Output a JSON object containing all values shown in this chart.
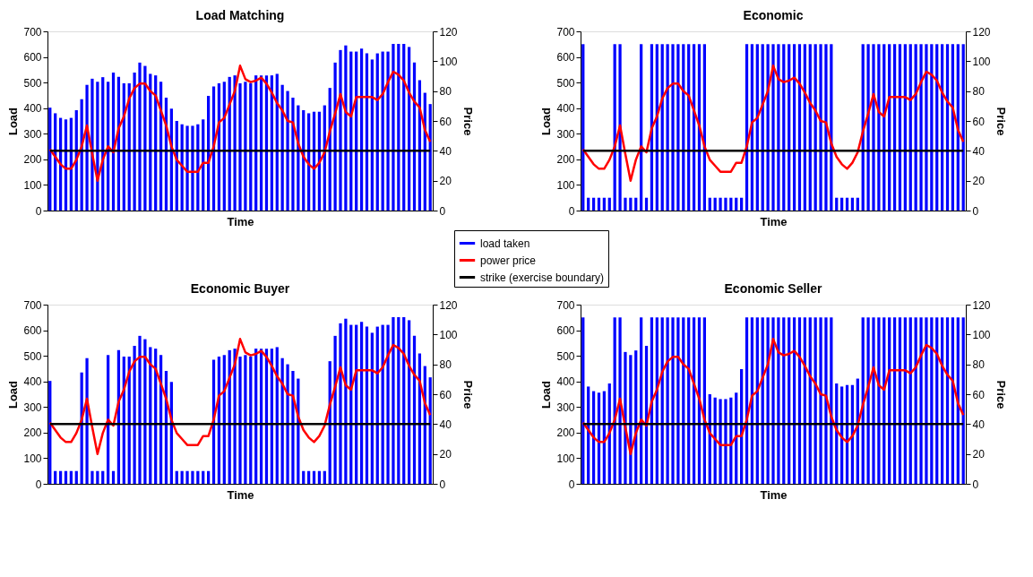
{
  "chart_data": [
    {
      "type": "bar",
      "title": "Load Matching",
      "xlabel": "Time",
      "ylabel": "Load",
      "y2label": "Price",
      "categories": [
        null,
        null,
        null,
        null,
        null,
        null,
        null,
        null,
        null,
        null,
        null,
        null,
        null,
        null,
        null,
        null,
        null,
        null,
        null,
        null,
        null,
        null,
        null,
        null,
        null,
        null,
        null,
        null,
        null,
        null,
        null,
        null,
        null,
        null,
        null,
        null,
        null,
        null,
        null,
        null,
        null,
        null,
        null,
        null,
        null,
        null,
        null,
        null,
        null,
        null,
        null,
        null,
        null,
        null,
        null,
        null,
        null,
        null,
        null,
        null,
        null,
        null,
        null,
        null,
        null,
        null,
        null,
        null,
        null,
        null,
        null,
        null,
        null
      ],
      "ylim": [
        0,
        700
      ],
      "yticks": [
        0,
        100,
        200,
        300,
        400,
        500,
        600,
        700
      ],
      "y2lim": [
        0,
        120
      ],
      "y2ticks": [
        0,
        20,
        40,
        60,
        80,
        100,
        120
      ],
      "grid": false,
      "legend": "bottom right",
      "series": [
        {
          "name": "load taken",
          "color": "#0000ff",
          "values": [
            402,
            380,
            362,
            356,
            362,
            392,
            435,
            491,
            515,
            503,
            521,
            503,
            539,
            522,
            497,
            497,
            539,
            578,
            565,
            534,
            528,
            503,
            441,
            398,
            350,
            337,
            331,
            331,
            337,
            356,
            448,
            485,
            497,
            503,
            522,
            528,
            497,
            503,
            497,
            528,
            528,
            528,
            528,
            534,
            491,
            467,
            441,
            411,
            392,
            380,
            386,
            386,
            411,
            479,
            578,
            627,
            645,
            621,
            621,
            633,
            614,
            590,
            614,
            621,
            621,
            651,
            651,
            651,
            639,
            578,
            509,
            460,
            416
          ]
        },
        {
          "name": "power price",
          "type": "line",
          "axis": "y2",
          "color": "#ff0000",
          "values": [
            41,
            36,
            31,
            28,
            28,
            34,
            43,
            57,
            38,
            20,
            34,
            43,
            39,
            55,
            63,
            75,
            82,
            85,
            85,
            80,
            77,
            67,
            57,
            43,
            34,
            30,
            26,
            26,
            26,
            32,
            32,
            43,
            59,
            62,
            71,
            80,
            97,
            88,
            86,
            87,
            89,
            85,
            79,
            72,
            67,
            60,
            59,
            45,
            36,
            31,
            28,
            32,
            39,
            53,
            65,
            78,
            66,
            63,
            76,
            76,
            76,
            76,
            74,
            78,
            86,
            93,
            91,
            87,
            79,
            73,
            69,
            54,
            46
          ]
        },
        {
          "name": "strike (exercise boundary)",
          "type": "line",
          "axis": "y2",
          "color": "#000000",
          "values": [
            40,
            40,
            40,
            40,
            40,
            40,
            40,
            40,
            40,
            40,
            40,
            40,
            40,
            40,
            40,
            40,
            40,
            40,
            40,
            40,
            40,
            40,
            40,
            40,
            40,
            40,
            40,
            40,
            40,
            40,
            40,
            40,
            40,
            40,
            40,
            40,
            40,
            40,
            40,
            40,
            40,
            40,
            40,
            40,
            40,
            40,
            40,
            40,
            40,
            40,
            40,
            40,
            40,
            40,
            40,
            40,
            40,
            40,
            40,
            40,
            40,
            40,
            40,
            40,
            40,
            40,
            40,
            40,
            40,
            40,
            40,
            40,
            40
          ]
        }
      ]
    },
    {
      "type": "bar",
      "title": "Economic",
      "xlabel": "Time",
      "ylabel": "Load",
      "y2label": "Price",
      "categories": [
        null,
        null,
        null,
        null,
        null,
        null,
        null,
        null,
        null,
        null,
        null,
        null,
        null,
        null,
        null,
        null,
        null,
        null,
        null,
        null,
        null,
        null,
        null,
        null,
        null,
        null,
        null,
        null,
        null,
        null,
        null,
        null,
        null,
        null,
        null,
        null,
        null,
        null,
        null,
        null,
        null,
        null,
        null,
        null,
        null,
        null,
        null,
        null,
        null,
        null,
        null,
        null,
        null,
        null,
        null,
        null,
        null,
        null,
        null,
        null,
        null,
        null,
        null,
        null,
        null,
        null,
        null,
        null,
        null,
        null,
        null,
        null,
        null
      ],
      "ylim": [
        0,
        700
      ],
      "yticks": [
        0,
        100,
        200,
        300,
        400,
        500,
        600,
        700
      ],
      "y2lim": [
        0,
        120
      ],
      "y2ticks": [
        0,
        20,
        40,
        60,
        80,
        100,
        120
      ],
      "grid": false,
      "series": [
        {
          "color": "#0000ff",
          "values": [
            650,
            50,
            50,
            50,
            50,
            50,
            650,
            650,
            50,
            50,
            50,
            650,
            50,
            650,
            650,
            650,
            650,
            650,
            650,
            650,
            650,
            650,
            650,
            650,
            50,
            50,
            50,
            50,
            50,
            50,
            50,
            650,
            650,
            650,
            650,
            650,
            650,
            650,
            650,
            650,
            650,
            650,
            650,
            650,
            650,
            650,
            650,
            650,
            50,
            50,
            50,
            50,
            50,
            650,
            650,
            650,
            650,
            650,
            650,
            650,
            650,
            650,
            650,
            650,
            650,
            650,
            650,
            650,
            650,
            650,
            650,
            650,
            650
          ]
        },
        {
          "type": "line",
          "axis": "y2",
          "color": "#ff0000",
          "values": [
            41,
            36,
            31,
            28,
            28,
            34,
            43,
            57,
            38,
            20,
            34,
            43,
            39,
            55,
            63,
            75,
            82,
            85,
            85,
            80,
            77,
            67,
            57,
            43,
            34,
            30,
            26,
            26,
            26,
            32,
            32,
            43,
            59,
            62,
            71,
            80,
            97,
            88,
            86,
            87,
            89,
            85,
            79,
            72,
            67,
            60,
            59,
            45,
            36,
            31,
            28,
            32,
            39,
            53,
            65,
            78,
            66,
            63,
            76,
            76,
            76,
            76,
            74,
            78,
            86,
            93,
            91,
            87,
            79,
            73,
            69,
            54,
            46
          ]
        },
        {
          "type": "line",
          "axis": "y2",
          "color": "#000000",
          "values": [
            40,
            40,
            40,
            40,
            40,
            40,
            40,
            40,
            40,
            40,
            40,
            40,
            40,
            40,
            40,
            40,
            40,
            40,
            40,
            40,
            40,
            40,
            40,
            40,
            40,
            40,
            40,
            40,
            40,
            40,
            40,
            40,
            40,
            40,
            40,
            40,
            40,
            40,
            40,
            40,
            40,
            40,
            40,
            40,
            40,
            40,
            40,
            40,
            40,
            40,
            40,
            40,
            40,
            40,
            40,
            40,
            40,
            40,
            40,
            40,
            40,
            40,
            40,
            40,
            40,
            40,
            40,
            40,
            40,
            40,
            40,
            40,
            40
          ]
        }
      ]
    },
    {
      "type": "bar",
      "title": "Economic Buyer",
      "xlabel": "Time",
      "ylabel": "Load",
      "y2label": "Price",
      "categories": [
        null,
        null,
        null,
        null,
        null,
        null,
        null,
        null,
        null,
        null,
        null,
        null,
        null,
        null,
        null,
        null,
        null,
        null,
        null,
        null,
        null,
        null,
        null,
        null,
        null,
        null,
        null,
        null,
        null,
        null,
        null,
        null,
        null,
        null,
        null,
        null,
        null,
        null,
        null,
        null,
        null,
        null,
        null,
        null,
        null,
        null,
        null,
        null,
        null,
        null,
        null,
        null,
        null,
        null,
        null,
        null,
        null,
        null,
        null,
        null,
        null,
        null,
        null,
        null,
        null,
        null,
        null,
        null,
        null,
        null,
        null,
        null,
        null
      ],
      "ylim": [
        0,
        700
      ],
      "yticks": [
        0,
        100,
        200,
        300,
        400,
        500,
        600,
        700
      ],
      "y2lim": [
        0,
        120
      ],
      "y2ticks": [
        0,
        20,
        40,
        60,
        80,
        100,
        120
      ],
      "grid": false,
      "series": [
        {
          "color": "#0000ff",
          "values": [
            402,
            50,
            50,
            50,
            50,
            50,
            435,
            491,
            50,
            50,
            50,
            503,
            50,
            522,
            497,
            497,
            539,
            578,
            565,
            534,
            528,
            503,
            441,
            398,
            50,
            50,
            50,
            50,
            50,
            50,
            50,
            485,
            497,
            503,
            522,
            528,
            497,
            503,
            497,
            528,
            528,
            528,
            528,
            534,
            491,
            467,
            441,
            411,
            50,
            50,
            50,
            50,
            50,
            479,
            578,
            627,
            645,
            621,
            621,
            633,
            614,
            590,
            614,
            621,
            621,
            651,
            651,
            651,
            639,
            578,
            509,
            460,
            416
          ]
        },
        {
          "type": "line",
          "axis": "y2",
          "color": "#ff0000",
          "values": [
            41,
            36,
            31,
            28,
            28,
            34,
            43,
            57,
            38,
            20,
            34,
            43,
            39,
            55,
            63,
            75,
            82,
            85,
            85,
            80,
            77,
            67,
            57,
            43,
            34,
            30,
            26,
            26,
            26,
            32,
            32,
            43,
            59,
            62,
            71,
            80,
            97,
            88,
            86,
            87,
            89,
            85,
            79,
            72,
            67,
            60,
            59,
            45,
            36,
            31,
            28,
            32,
            39,
            53,
            65,
            78,
            66,
            63,
            76,
            76,
            76,
            76,
            74,
            78,
            86,
            93,
            91,
            87,
            79,
            73,
            69,
            54,
            46
          ]
        },
        {
          "type": "line",
          "axis": "y2",
          "color": "#000000",
          "values": [
            40,
            40,
            40,
            40,
            40,
            40,
            40,
            40,
            40,
            40,
            40,
            40,
            40,
            40,
            40,
            40,
            40,
            40,
            40,
            40,
            40,
            40,
            40,
            40,
            40,
            40,
            40,
            40,
            40,
            40,
            40,
            40,
            40,
            40,
            40,
            40,
            40,
            40,
            40,
            40,
            40,
            40,
            40,
            40,
            40,
            40,
            40,
            40,
            40,
            40,
            40,
            40,
            40,
            40,
            40,
            40,
            40,
            40,
            40,
            40,
            40,
            40,
            40,
            40,
            40,
            40,
            40,
            40,
            40,
            40,
            40,
            40,
            40
          ]
        }
      ]
    },
    {
      "type": "bar",
      "title": "Economic Seller",
      "xlabel": "Time",
      "ylabel": "Load",
      "y2label": "Price",
      "categories": [
        null,
        null,
        null,
        null,
        null,
        null,
        null,
        null,
        null,
        null,
        null,
        null,
        null,
        null,
        null,
        null,
        null,
        null,
        null,
        null,
        null,
        null,
        null,
        null,
        null,
        null,
        null,
        null,
        null,
        null,
        null,
        null,
        null,
        null,
        null,
        null,
        null,
        null,
        null,
        null,
        null,
        null,
        null,
        null,
        null,
        null,
        null,
        null,
        null,
        null,
        null,
        null,
        null,
        null,
        null,
        null,
        null,
        null,
        null,
        null,
        null,
        null,
        null,
        null,
        null,
        null,
        null,
        null,
        null,
        null,
        null,
        null,
        null
      ],
      "ylim": [
        0,
        700
      ],
      "yticks": [
        0,
        100,
        200,
        300,
        400,
        500,
        600,
        700
      ],
      "y2lim": [
        0,
        120
      ],
      "y2ticks": [
        0,
        20,
        40,
        60,
        80,
        100,
        120
      ],
      "grid": false,
      "series": [
        {
          "color": "#0000ff",
          "values": [
            650,
            380,
            362,
            356,
            362,
            392,
            650,
            650,
            515,
            503,
            521,
            650,
            539,
            650,
            650,
            650,
            650,
            650,
            650,
            650,
            650,
            650,
            650,
            650,
            350,
            337,
            331,
            331,
            337,
            356,
            448,
            650,
            650,
            650,
            650,
            650,
            650,
            650,
            650,
            650,
            650,
            650,
            650,
            650,
            650,
            650,
            650,
            650,
            392,
            380,
            386,
            386,
            411,
            650,
            650,
            650,
            650,
            650,
            650,
            650,
            650,
            650,
            650,
            650,
            650,
            650,
            650,
            650,
            650,
            650,
            650,
            650,
            650
          ]
        },
        {
          "type": "line",
          "axis": "y2",
          "color": "#ff0000",
          "values": [
            41,
            36,
            31,
            28,
            28,
            34,
            43,
            57,
            38,
            20,
            34,
            43,
            39,
            55,
            63,
            75,
            82,
            85,
            85,
            80,
            77,
            67,
            57,
            43,
            34,
            30,
            26,
            26,
            26,
            32,
            32,
            43,
            59,
            62,
            71,
            80,
            97,
            88,
            86,
            87,
            89,
            85,
            79,
            72,
            67,
            60,
            59,
            45,
            36,
            31,
            28,
            32,
            39,
            53,
            65,
            78,
            66,
            63,
            76,
            76,
            76,
            76,
            74,
            78,
            86,
            93,
            91,
            87,
            79,
            73,
            69,
            54,
            46
          ]
        },
        {
          "type": "line",
          "axis": "y2",
          "color": "#000000",
          "values": [
            40,
            40,
            40,
            40,
            40,
            40,
            40,
            40,
            40,
            40,
            40,
            40,
            40,
            40,
            40,
            40,
            40,
            40,
            40,
            40,
            40,
            40,
            40,
            40,
            40,
            40,
            40,
            40,
            40,
            40,
            40,
            40,
            40,
            40,
            40,
            40,
            40,
            40,
            40,
            40,
            40,
            40,
            40,
            40,
            40,
            40,
            40,
            40,
            40,
            40,
            40,
            40,
            40,
            40,
            40,
            40,
            40,
            40,
            40,
            40,
            40,
            40,
            40,
            40,
            40,
            40,
            40,
            40,
            40,
            40,
            40,
            40,
            40
          ]
        }
      ]
    }
  ]
}
